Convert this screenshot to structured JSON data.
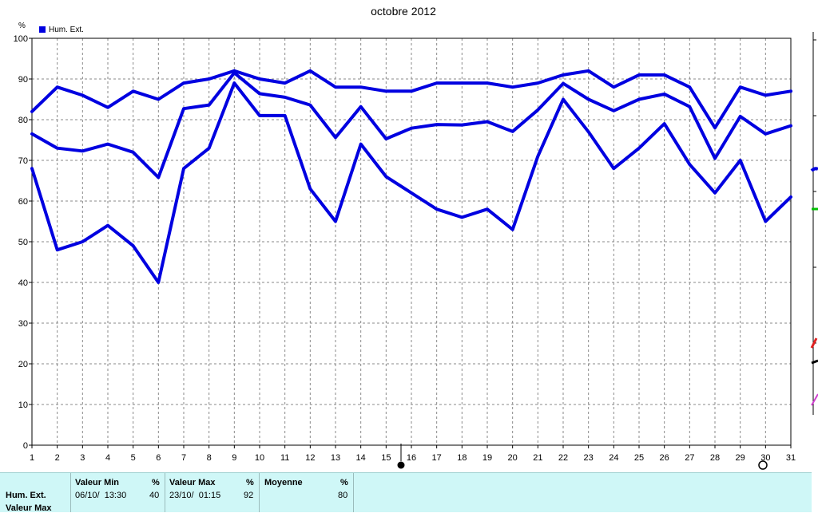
{
  "chart_data": {
    "type": "line",
    "title": "octobre 2012",
    "ylabel": "%",
    "ylim": [
      0,
      100
    ],
    "yticks": [
      0,
      10,
      20,
      30,
      40,
      50,
      60,
      70,
      80,
      90,
      100
    ],
    "x": [
      1,
      2,
      3,
      4,
      5,
      6,
      7,
      8,
      9,
      10,
      11,
      12,
      13,
      14,
      15,
      16,
      17,
      18,
      19,
      20,
      21,
      22,
      23,
      24,
      25,
      26,
      27,
      28,
      29,
      30,
      31
    ],
    "grid": true,
    "legend": "top-left",
    "series": [
      {
        "name": "Hum. Ext.",
        "role": "max",
        "color": "#0000e0",
        "values": [
          82,
          88,
          86,
          83,
          87,
          85,
          89,
          90,
          92,
          90,
          89,
          92,
          88,
          88,
          87,
          87,
          89,
          89,
          89,
          88,
          89,
          91,
          92,
          88,
          91,
          91,
          88,
          78,
          88,
          86,
          87
        ]
      },
      {
        "role": "mean",
        "color": "#0000e0",
        "values": [
          76.5,
          73,
          72.3,
          74,
          72,
          65.8,
          82.7,
          83.6,
          91.5,
          86.4,
          85.5,
          83.6,
          75.6,
          83.2,
          75.3,
          77.9,
          78.8,
          78.7,
          79.5,
          77.1,
          82.4,
          88.9,
          85,
          82.2,
          85,
          86.3,
          83.2,
          70.5,
          80.8,
          76.5,
          78.5
        ]
      },
      {
        "role": "min",
        "color": "#0000e0",
        "values": [
          68,
          48,
          50,
          54,
          49,
          40,
          68,
          73,
          89,
          81,
          81,
          63,
          55,
          74,
          66,
          62,
          58,
          56,
          58,
          53,
          71,
          85,
          77,
          68,
          73,
          79,
          69,
          62,
          70,
          55,
          61
        ]
      }
    ]
  },
  "summary": {
    "series_label": "Hum. Ext.",
    "second_label": "Valeur Max",
    "min": {
      "header": "Valeur Min",
      "unit": "%",
      "date": "06/10/  13:30",
      "value": "40"
    },
    "max": {
      "header": "Valeur Max",
      "unit": "%",
      "date": "23/10/  01:15",
      "value": "92"
    },
    "mean": {
      "header": "Moyenne",
      "unit": "%",
      "value": "80"
    }
  }
}
